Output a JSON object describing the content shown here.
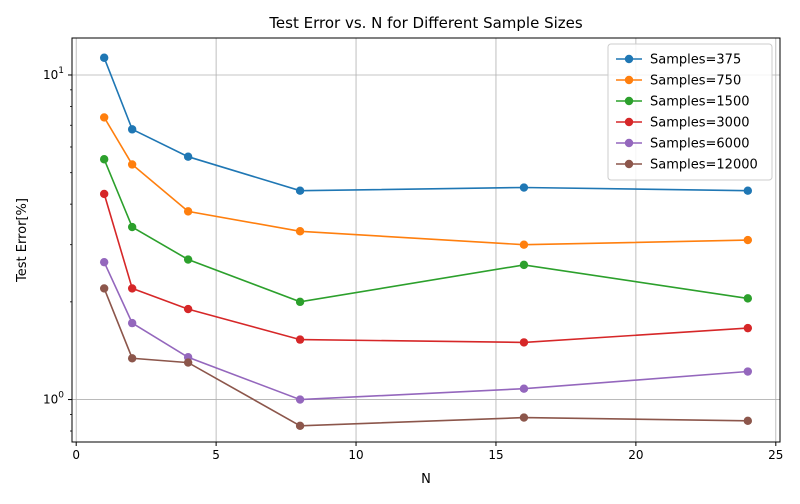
{
  "chart_data": {
    "type": "line",
    "title": "Test Error vs. N for Different Sample Sizes",
    "xlabel": "N",
    "ylabel": "Test Error[%]",
    "xlim": [
      -0.15,
      25.15
    ],
    "ylim": [
      0.74,
      13.0
    ],
    "yscale": "log",
    "grid": true,
    "legend": "top-right",
    "x": [
      1,
      2,
      4,
      8,
      16,
      24
    ],
    "xticks": [
      0,
      5,
      10,
      15,
      20,
      25
    ],
    "xtick_labels": [
      "0",
      "5",
      "10",
      "15",
      "20",
      "25"
    ],
    "yticks_major": [
      1,
      10
    ],
    "ytick_labels": [
      "10^0",
      "10^1"
    ],
    "series": [
      {
        "name": "Samples=375",
        "color": "#1f77b4",
        "values": [
          11.3,
          6.8,
          5.6,
          4.4,
          4.5,
          4.4
        ]
      },
      {
        "name": "Samples=750",
        "color": "#ff7f0e",
        "values": [
          7.4,
          5.3,
          3.8,
          3.3,
          3.0,
          3.1
        ]
      },
      {
        "name": "Samples=1500",
        "color": "#2ca02c",
        "values": [
          5.5,
          3.4,
          2.7,
          2.0,
          2.6,
          2.05
        ]
      },
      {
        "name": "Samples=3000",
        "color": "#d62728",
        "values": [
          4.3,
          2.2,
          1.9,
          1.53,
          1.5,
          1.66
        ]
      },
      {
        "name": "Samples=6000",
        "color": "#9467bd",
        "values": [
          2.65,
          1.72,
          1.35,
          1.0,
          1.08,
          1.22
        ]
      },
      {
        "name": "Samples=12000",
        "color": "#8c564b",
        "values": [
          2.2,
          1.34,
          1.3,
          0.83,
          0.88,
          0.86
        ]
      }
    ]
  }
}
